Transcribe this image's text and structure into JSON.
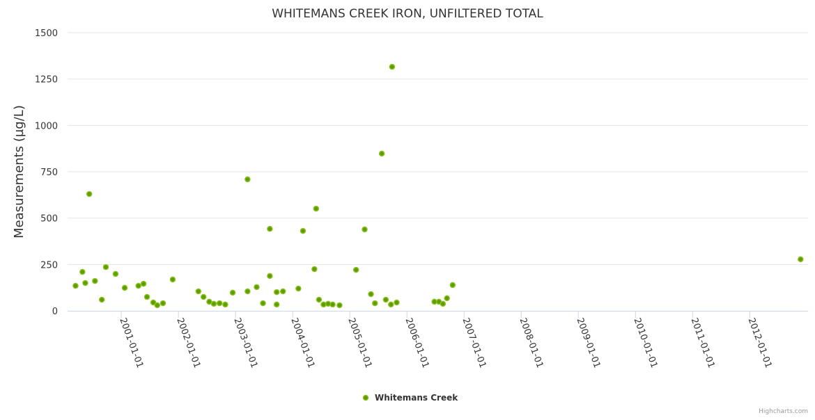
{
  "chart_data": {
    "type": "scatter",
    "title": "WHITEMANS CREEK IRON, UNFILTERED TOTAL",
    "xlabel": "",
    "ylabel": "Measurements (µg/L)",
    "ylim": [
      0,
      1500
    ],
    "xlim": [
      2000.06,
      2013.02
    ],
    "y_ticks": [
      "0",
      "250",
      "500",
      "750",
      "1000",
      "1250",
      "1500"
    ],
    "x_ticks": [
      {
        "year": 2001,
        "label": "2001-01-01"
      },
      {
        "year": 2002,
        "label": "2002-01-01"
      },
      {
        "year": 2003,
        "label": "2003-01-01"
      },
      {
        "year": 2004,
        "label": "2004-01-01"
      },
      {
        "year": 2005,
        "label": "2005-01-01"
      },
      {
        "year": 2006,
        "label": "2006-01-01"
      },
      {
        "year": 2007,
        "label": "2007-01-01"
      },
      {
        "year": 2008,
        "label": "2008-01-01"
      },
      {
        "year": 2009,
        "label": "2009-01-01"
      },
      {
        "year": 2010,
        "label": "2010-01-01"
      },
      {
        "year": 2011,
        "label": "2011-01-01"
      },
      {
        "year": 2012,
        "label": "2012-01-01"
      }
    ],
    "grid": true,
    "legend_position": "bottom-center",
    "series": [
      {
        "name": "Whitemans Creek",
        "color": "#5a9e00",
        "x": [
          2000.2,
          2000.32,
          2000.37,
          2000.44,
          2000.54,
          2000.66,
          2000.73,
          2000.9,
          2001.06,
          2001.3,
          2001.39,
          2001.45,
          2001.56,
          2001.63,
          2001.73,
          2001.9,
          2002.35,
          2002.44,
          2002.54,
          2002.62,
          2002.72,
          2002.82,
          2002.95,
          2003.21,
          2003.21,
          2003.37,
          2003.48,
          2003.6,
          2003.6,
          2003.72,
          2003.72,
          2003.83,
          2004.1,
          2004.18,
          2004.38,
          2004.41,
          2004.46,
          2004.54,
          2004.62,
          2004.7,
          2004.82,
          2005.11,
          2005.26,
          2005.37,
          2005.44,
          2005.56,
          2005.63,
          2005.72,
          2005.74,
          2005.82,
          2006.48,
          2006.56,
          2006.63,
          2006.7,
          2006.8,
          2012.89
        ],
        "y": [
          135,
          210,
          150,
          630,
          161,
          60,
          236,
          199,
          124,
          135,
          146,
          75,
          45,
          30,
          41,
          169,
          105,
          75,
          49,
          38,
          41,
          34,
          98,
          709,
          105,
          128,
          41,
          442,
          188,
          34,
          101,
          105,
          120,
          431,
          225,
          551,
          60,
          34,
          38,
          34,
          30,
          221,
          439,
          90,
          41,
          848,
          60,
          34,
          1316,
          45,
          49,
          49,
          38,
          68,
          139,
          278
        ]
      }
    ]
  },
  "credits": "Highcharts.com"
}
